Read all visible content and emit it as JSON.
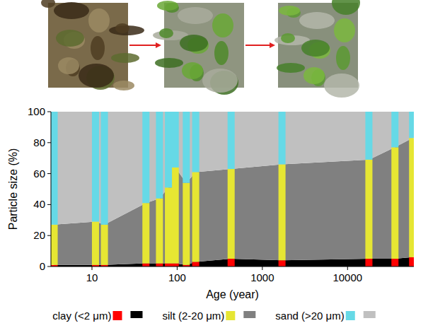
{
  "chart_data": {
    "type": "area",
    "stacked": true,
    "log": "x",
    "x_label": "Age (year)",
    "y_label": "Particle size (%)",
    "x": [
      3.6,
      11,
      14,
      43,
      62,
      79,
      95,
      128,
      165,
      430,
      1700,
      17800,
      36000,
      58000
    ],
    "xlim": [
      3.3,
      60000
    ],
    "xticks": [
      10,
      100,
      1000,
      10000
    ],
    "ylim": [
      0,
      100
    ],
    "yticks": [
      0,
      20,
      40,
      60,
      80,
      100
    ],
    "legend": "bottom",
    "series": [
      {
        "name": "clay (<2 μm)",
        "color": "#ff0000",
        "values": [
          1,
          1,
          1,
          2,
          2,
          2,
          2,
          1,
          3,
          5,
          4,
          5,
          5,
          6
        ]
      },
      {
        "name": "silt (2-20 μm)",
        "color": "#e6e633",
        "values": [
          26,
          28,
          26,
          39,
          42,
          49,
          62,
          53,
          58,
          58,
          62,
          64,
          72,
          77
        ]
      },
      {
        "name": "sand (>20 μm)",
        "color": "#66d9e6",
        "values": [
          73,
          71,
          73,
          59,
          56,
          49,
          36,
          46,
          39,
          37,
          34,
          31,
          23,
          17
        ]
      }
    ]
  }
}
